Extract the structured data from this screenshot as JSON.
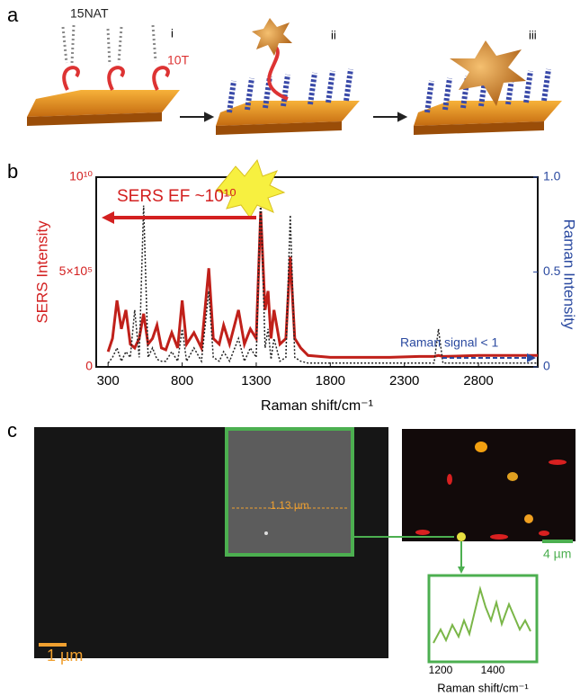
{
  "panel_a": {
    "label": "a",
    "molecule_1": "15NAT",
    "molecule_2": "10T",
    "steps": [
      "i",
      "ii",
      "iii"
    ]
  },
  "chart_data": {
    "type": "line",
    "panel_label": "b",
    "x_label": "Raman shift/cm⁻¹",
    "y_label": "SERS Intensity",
    "y2_label": "Raman Intensity",
    "left_axis_labels": [
      "0",
      "5×10⁵",
      "10¹⁰"
    ],
    "annotation": "SERS  EF ~10¹⁰",
    "annotation_2": "Raman signal < 1",
    "x": [
      300,
      330,
      360,
      390,
      420,
      450,
      480,
      510,
      540,
      570,
      600,
      630,
      660,
      690,
      730,
      770,
      800,
      830,
      880,
      930,
      980,
      1010,
      1050,
      1080,
      1120,
      1180,
      1220,
      1260,
      1300,
      1330,
      1360,
      1380,
      1400,
      1420,
      1460,
      1500,
      1530,
      1560,
      1600,
      1650,
      1800,
      2000,
      2200,
      2400,
      2500,
      2530,
      2560,
      2800,
      3000,
      3200
    ],
    "series": [
      {
        "color": "#c0201a",
        "values": [
          0.08,
          0.15,
          0.35,
          0.2,
          0.3,
          0.12,
          0.1,
          0.15,
          0.28,
          0.12,
          0.15,
          0.22,
          0.1,
          0.09,
          0.18,
          0.1,
          0.35,
          0.12,
          0.18,
          0.1,
          0.52,
          0.15,
          0.12,
          0.22,
          0.12,
          0.3,
          0.12,
          0.2,
          0.15,
          0.82,
          0.3,
          0.4,
          0.15,
          0.3,
          0.12,
          0.15,
          0.58,
          0.15,
          0.1,
          0.06,
          0.05,
          0.05,
          0.05,
          0.055,
          0.055,
          0.06,
          0.055,
          0.06,
          0.06,
          0.06
        ]
      },
      {
        "color": "#222222",
        "values": [
          0.02,
          0.05,
          0.1,
          0.03,
          0.08,
          0.05,
          0.3,
          0.05,
          0.85,
          0.05,
          0.1,
          0.04,
          0.03,
          0.03,
          0.08,
          0.03,
          0.2,
          0.03,
          0.1,
          0.03,
          0.4,
          0.05,
          0.03,
          0.08,
          0.03,
          0.15,
          0.03,
          0.1,
          0.05,
          0.9,
          0.1,
          0.2,
          0.04,
          0.15,
          0.03,
          0.05,
          0.8,
          0.05,
          0.03,
          0.02,
          0.02,
          0.02,
          0.02,
          0.02,
          0.02,
          0.2,
          0.02,
          0.02,
          0.02,
          0.02
        ]
      }
    ],
    "xlim": [
      220,
      3200
    ],
    "xticks": [
      300,
      800,
      1300,
      1800,
      2300,
      2800
    ],
    "ylim": [
      0,
      1
    ],
    "yticks": [
      0,
      0.5,
      {
        "value": 1,
        "label": "1.0"
      }
    ]
  },
  "panel_c": {
    "label": "c",
    "box_width": "1.13 µm",
    "scale_left": "1 µm",
    "scale_right": "4 µm",
    "inset_ticks": [
      "1200",
      "1400"
    ],
    "inset_x_label": "Raman shift/cm⁻¹"
  }
}
